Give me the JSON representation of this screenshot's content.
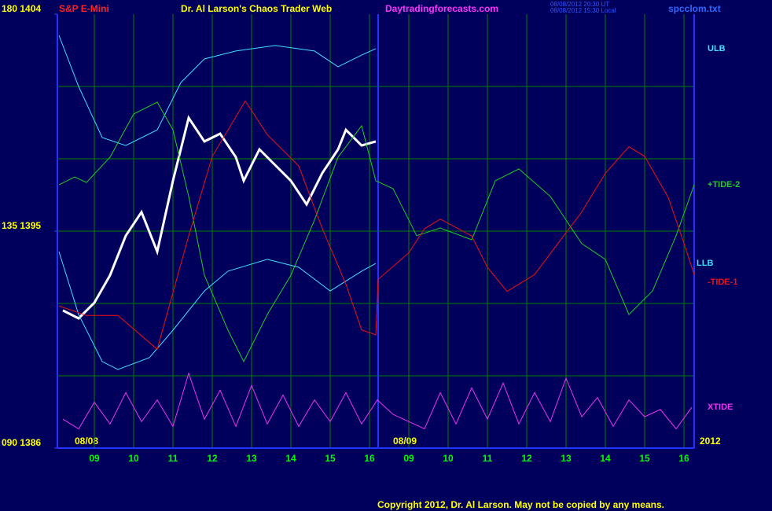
{
  "chart_data": {
    "type": "line",
    "title": "Dr. Al Larson's Chaos Trader Web",
    "symbol": "S&P E-Mini",
    "site": "Daytradingforecasts.com",
    "timestamp_lines": [
      "08/08/2012 20:30 UT",
      "08/08/2012 15:30 Local"
    ],
    "file": "spcclom.txt",
    "copyright": "Copyright 2012, Dr. Al Larson. May not be copied by any means.",
    "date_labels": [
      "08/08",
      "08/09",
      "2012"
    ],
    "xlim": [
      8.06,
      24.26
    ],
    "xticks": [
      {
        "value": 9,
        "label": "09"
      },
      10,
      11,
      12,
      13,
      14,
      15,
      16,
      {
        "value": 17,
        "label": "09"
      },
      {
        "value": 18,
        "label": "10"
      },
      {
        "value": 19,
        "label": "11"
      },
      {
        "value": 20,
        "label": "12"
      },
      {
        "value": 21,
        "label": "13"
      },
      {
        "value": 22,
        "label": "14"
      },
      {
        "value": 23,
        "label": "15"
      },
      {
        "value": 24,
        "label": "16"
      }
    ],
    "ylim": [
      1386,
      1404
    ],
    "yticks": [
      {
        "value": 1404,
        "label": "180 1404"
      },
      {
        "value": 1395,
        "label": "135 1395"
      },
      {
        "value": 1386,
        "label": "090 1386"
      }
    ],
    "ygrid": [
      1389,
      1392,
      1395,
      1398,
      1401
    ],
    "divider_x": 16.22,
    "grid": true,
    "series": [
      {
        "color": "#ffffff",
        "width": 3,
        "x": [
          8.2,
          8.6,
          9.0,
          9.4,
          9.8,
          10.2,
          10.6,
          11.0,
          11.4,
          11.8,
          12.2,
          12.6,
          12.8,
          13.2,
          13.6,
          14.0,
          14.4,
          14.8,
          15.2,
          15.4,
          15.8,
          16.16
        ],
        "values": [
          1391.71,
          1391.38,
          1392.03,
          1393.17,
          1394.81,
          1395.79,
          1394.15,
          1397.09,
          1399.7,
          1398.72,
          1399.04,
          1398.07,
          1397.09,
          1398.39,
          1397.74,
          1397.09,
          1396.11,
          1397.41,
          1398.39,
          1399.2,
          1398.55,
          1398.72
        ]
      },
      {
        "name": "ULB",
        "color": "#44ddff",
        "width": 1,
        "x": [
          8.1,
          8.6,
          9.2,
          9.8,
          10.6,
          11.2,
          11.8,
          12.6,
          13.6,
          14.6,
          15.2,
          15.8,
          16.16
        ],
        "values": [
          1403.12,
          1401.0,
          1398.88,
          1398.55,
          1399.2,
          1401.16,
          1402.14,
          1402.47,
          1402.7,
          1402.47,
          1401.82,
          1402.3,
          1402.57
        ]
      },
      {
        "name": "+TIDE-2",
        "color": "#22cc22",
        "width": 1,
        "x": [
          8.1,
          8.5,
          8.8,
          9.4,
          10.0,
          10.6,
          11.0,
          11.4,
          11.8,
          12.4,
          12.8,
          13.4,
          14.0,
          14.6,
          15.2,
          15.8,
          16.16,
          16.6,
          17.2,
          17.8,
          18.6,
          19.2,
          19.8,
          20.6,
          21.4,
          22.0,
          22.6,
          23.2,
          23.8,
          24.26
        ],
        "values": [
          1396.92,
          1397.25,
          1397.02,
          1398.07,
          1399.86,
          1400.35,
          1399.2,
          1396.44,
          1393.17,
          1390.89,
          1389.59,
          1391.54,
          1393.17,
          1395.46,
          1398.07,
          1399.37,
          1397.09,
          1396.76,
          1394.81,
          1395.13,
          1394.64,
          1397.09,
          1397.58,
          1396.44,
          1394.48,
          1393.83,
          1391.54,
          1392.52,
          1394.81,
          1396.92
        ]
      },
      {
        "name": "LLB",
        "color": "#44ddff",
        "width": 1,
        "x": [
          8.1,
          8.6,
          9.2,
          9.6,
          10.4,
          11.0,
          11.8,
          12.4,
          13.4,
          14.2,
          15.0,
          15.8,
          16.16
        ],
        "values": [
          1394.15,
          1391.54,
          1389.59,
          1389.26,
          1389.75,
          1390.89,
          1392.52,
          1393.34,
          1393.83,
          1393.5,
          1392.52,
          1393.34,
          1393.66
        ]
      },
      {
        "name": "-TIDE-1",
        "color": "#ee1111",
        "width": 1,
        "x": [
          8.1,
          8.8,
          9.6,
          10.6,
          11.4,
          12.0,
          12.84,
          13.4,
          14.2,
          14.8,
          15.4,
          15.8,
          16.16,
          16.22,
          17.0,
          17.4,
          17.8,
          18.6,
          19.0,
          19.5,
          20.2,
          20.8,
          21.4,
          22.0,
          22.6,
          23.0,
          23.6,
          24.0,
          24.26
        ],
        "values": [
          1391.9,
          1391.5,
          1391.5,
          1390.1,
          1394.8,
          1398.1,
          1400.4,
          1399.0,
          1397.7,
          1395.1,
          1392.8,
          1390.9,
          1390.7,
          1393.0,
          1394.1,
          1395.1,
          1395.5,
          1394.8,
          1393.5,
          1392.5,
          1393.2,
          1394.5,
          1395.8,
          1397.4,
          1398.5,
          1398.1,
          1396.4,
          1394.5,
          1393.2
        ]
      },
      {
        "name": "XTIDE",
        "color": "#ee33ee",
        "width": 1,
        "x": [
          8.2,
          8.6,
          9.0,
          9.4,
          9.8,
          10.2,
          10.6,
          11.0,
          11.4,
          11.8,
          12.2,
          12.6,
          13.0,
          13.4,
          13.8,
          14.2,
          14.6,
          15.0,
          15.4,
          15.8,
          16.2,
          16.6,
          17.0,
          17.4,
          17.8,
          18.2,
          18.6,
          19.0,
          19.4,
          19.8,
          20.2,
          20.6,
          21.0,
          21.4,
          21.8,
          22.2,
          22.6,
          23.0,
          23.4,
          23.8,
          24.2
        ],
        "values": [
          1387.2,
          1386.8,
          1387.9,
          1387.0,
          1388.3,
          1387.1,
          1388.0,
          1386.9,
          1389.1,
          1387.2,
          1388.4,
          1386.9,
          1388.6,
          1387.0,
          1388.2,
          1386.9,
          1388.0,
          1387.1,
          1388.3,
          1387.0,
          1388.0,
          1387.4,
          1387.1,
          1386.8,
          1388.3,
          1387.0,
          1388.5,
          1387.2,
          1388.7,
          1387.0,
          1388.3,
          1387.1,
          1388.9,
          1387.3,
          1388.1,
          1386.9,
          1388.0,
          1387.3,
          1387.6,
          1386.8,
          1387.7
        ]
      }
    ]
  }
}
